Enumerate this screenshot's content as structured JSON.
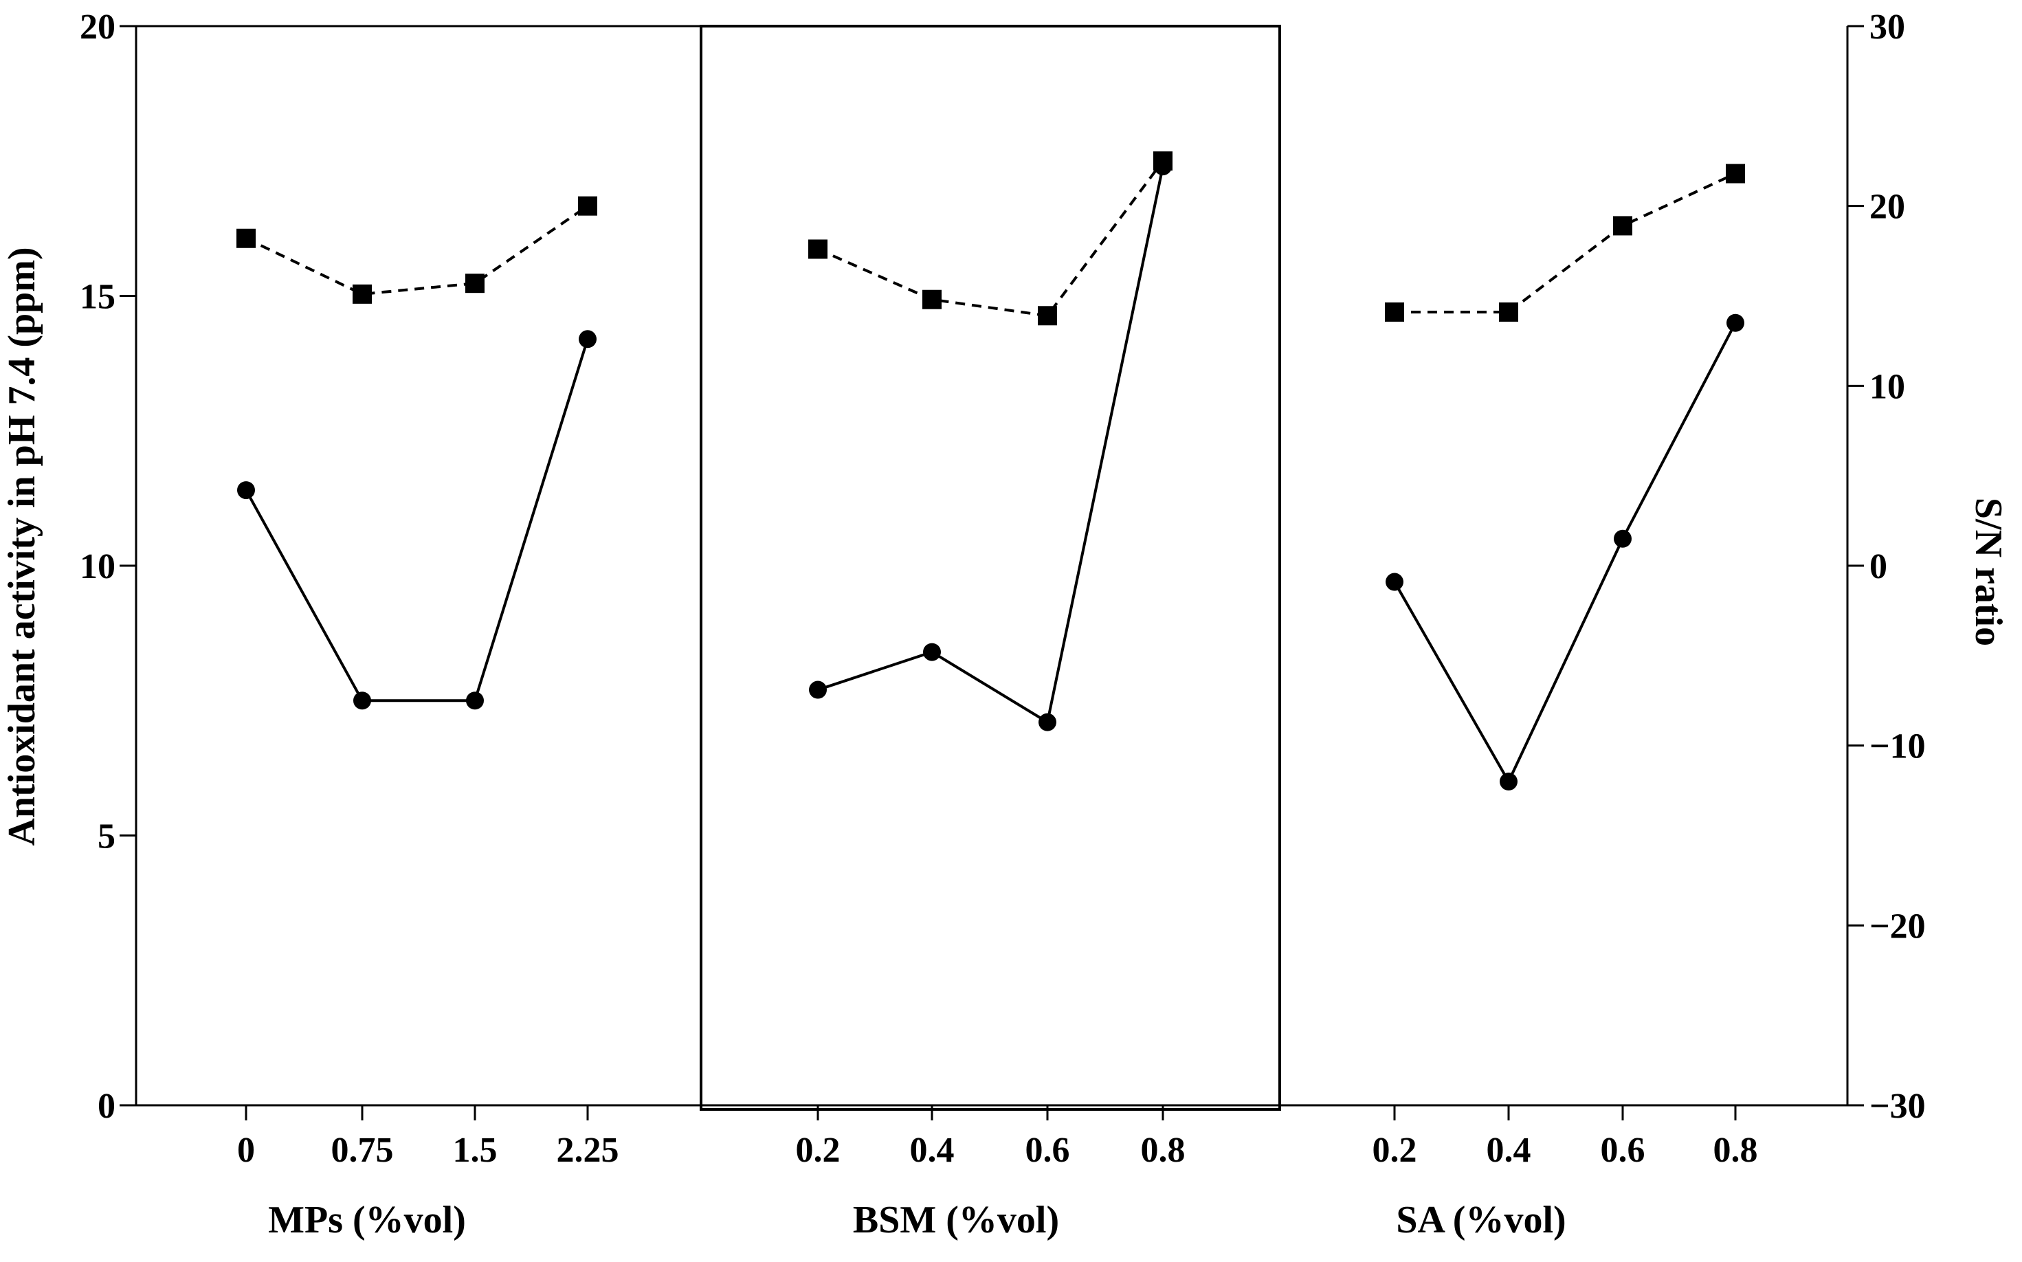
{
  "chart_data": {
    "type": "line",
    "left_axis": {
      "label": "Antioxidant activity in pH 7.4 (ppm)",
      "ylim": [
        0,
        20
      ],
      "ticks": [
        "0",
        "5",
        "10",
        "15",
        "20"
      ]
    },
    "right_axis": {
      "label": "S/N ratio",
      "ylim": [
        -30,
        30
      ],
      "ticks": [
        "-30",
        "-20",
        "-10",
        "0",
        "10",
        "20",
        "30"
      ]
    },
    "panels": [
      {
        "xlabel": "MPs (%vol)",
        "categories": [
          "0",
          "0.75",
          "1.5",
          "2.25"
        ],
        "series": [
          {
            "axis": "left",
            "marker": "circle",
            "line": "solid",
            "values": [
              11.4,
              7.5,
              7.5,
              14.2
            ]
          },
          {
            "axis": "right",
            "marker": "square",
            "line": "dashed",
            "values": [
              18.2,
              15.1,
              15.7,
              20.0
            ]
          }
        ]
      },
      {
        "xlabel": "BSM (%vol)",
        "categories": [
          "0.2",
          "0.4",
          "0.6",
          "0.8"
        ],
        "series": [
          {
            "axis": "left",
            "marker": "circle",
            "line": "solid",
            "values": [
              7.7,
              8.4,
              7.1,
              17.4
            ]
          },
          {
            "axis": "right",
            "marker": "square",
            "line": "dashed",
            "values": [
              17.6,
              14.8,
              13.9,
              22.5
            ]
          }
        ]
      },
      {
        "xlabel": "SA (%vol)",
        "categories": [
          "0.2",
          "0.4",
          "0.6",
          "0.8"
        ],
        "series": [
          {
            "axis": "left",
            "marker": "circle",
            "line": "solid",
            "values": [
              9.7,
              6.0,
              10.5,
              14.5
            ]
          },
          {
            "axis": "right",
            "marker": "square",
            "line": "dashed",
            "values": [
              14.1,
              14.1,
              18.9,
              21.8
            ]
          }
        ]
      }
    ],
    "grid": false,
    "legend": "none"
  }
}
